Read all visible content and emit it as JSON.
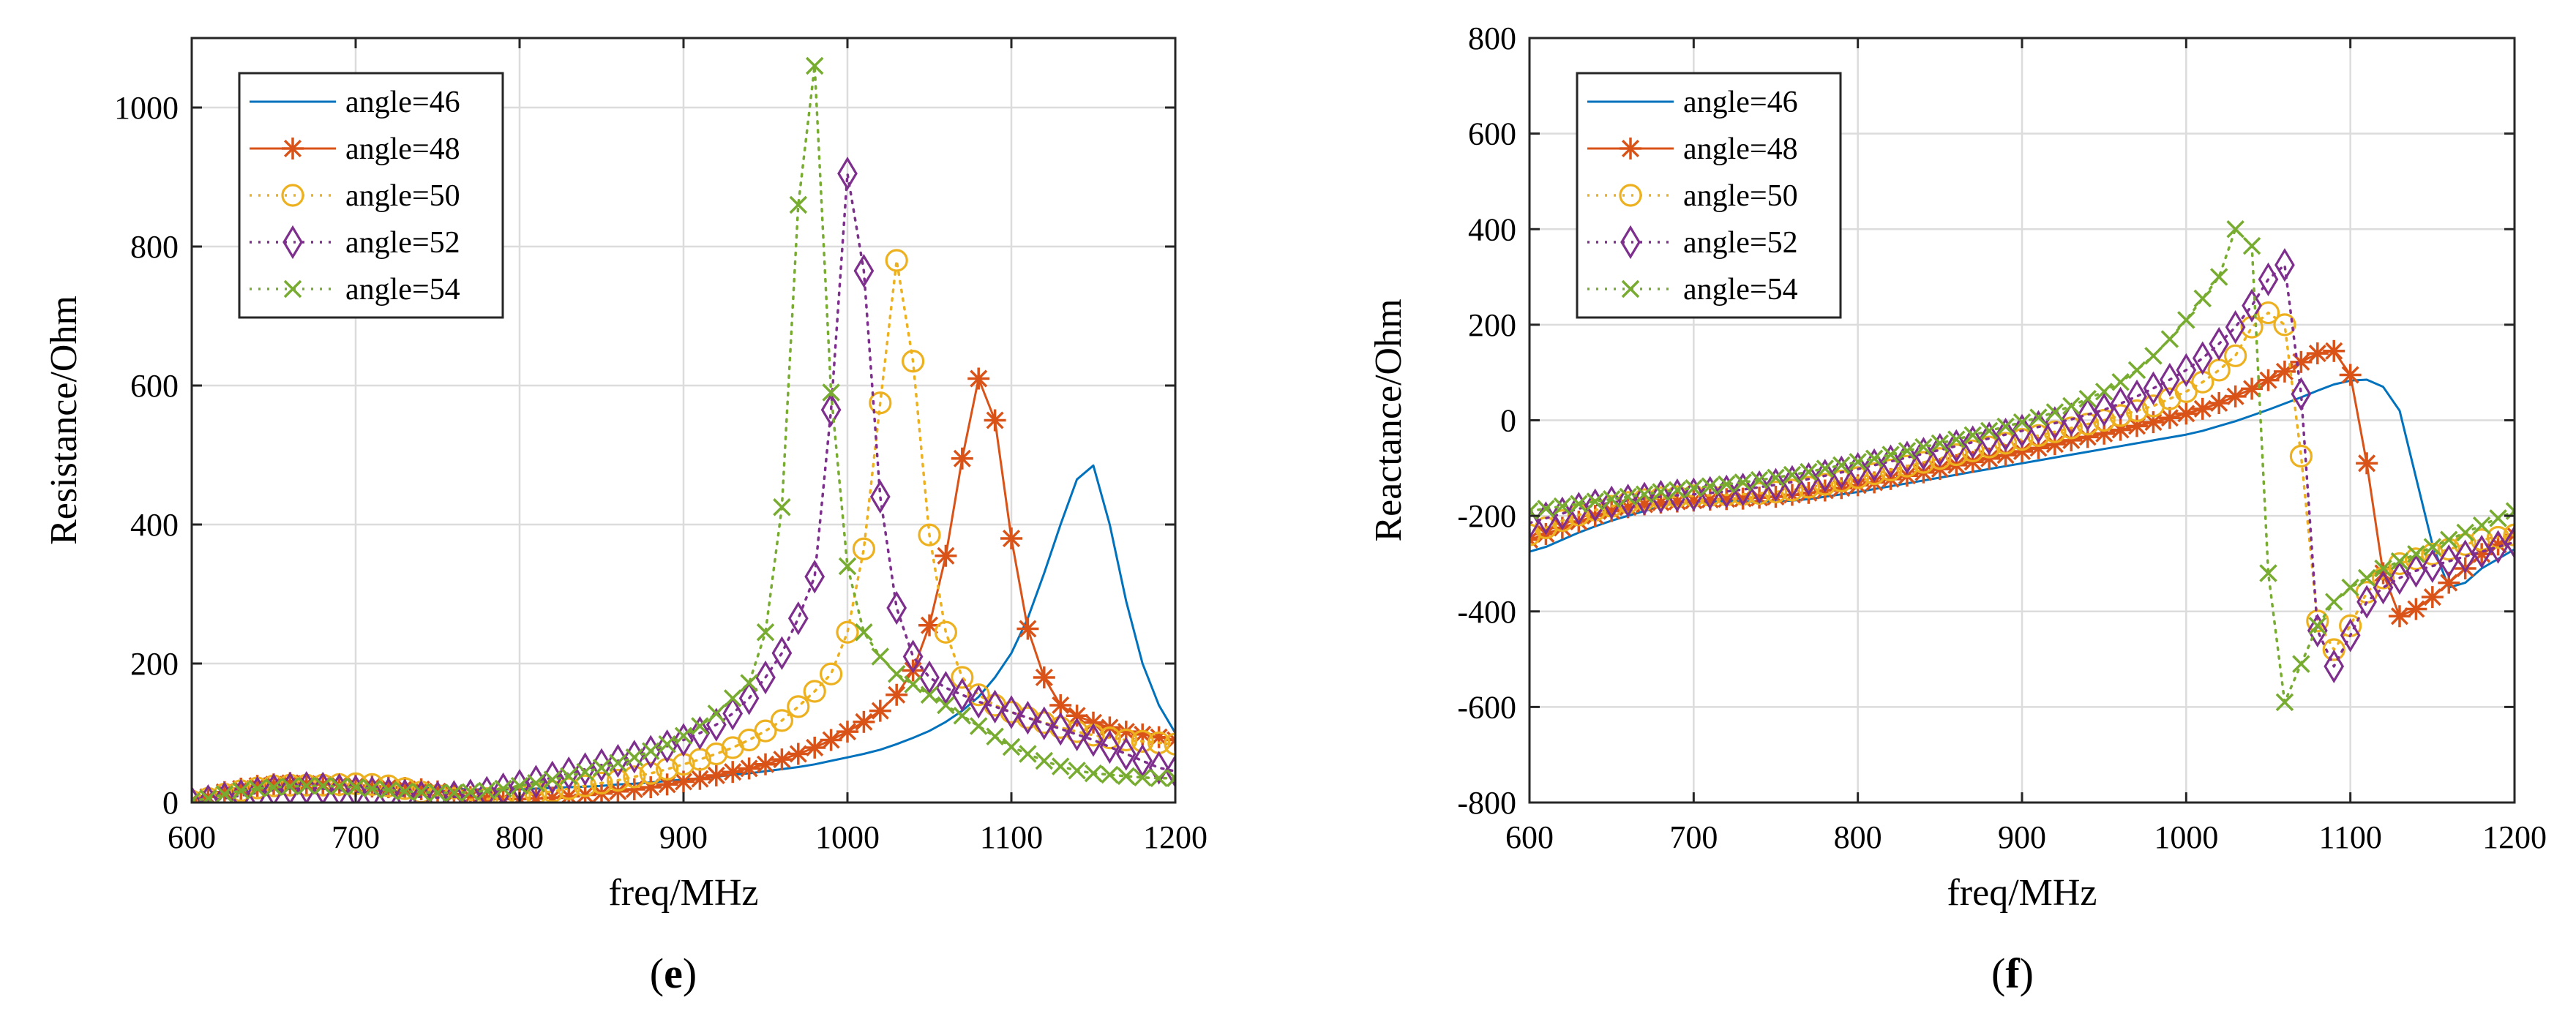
{
  "figure": {
    "caption_e": {
      "open": "(",
      "letter": "e",
      "close": ")"
    },
    "caption_f": {
      "open": "(",
      "letter": "f",
      "close": ")"
    }
  },
  "chart_data": [
    {
      "type": "line",
      "panel": "e",
      "title": "",
      "xlabel": "freq/MHz",
      "ylabel": "Resistance/Ohm",
      "xlim": [
        600,
        1200
      ],
      "ylim": [
        0,
        1100
      ],
      "xticks": [
        600,
        700,
        800,
        900,
        1000,
        1100,
        1200
      ],
      "yticks": [
        0,
        200,
        400,
        600,
        800,
        1000
      ],
      "grid": true,
      "legend_position": "top-left",
      "x": [
        600,
        610,
        620,
        630,
        640,
        650,
        660,
        670,
        680,
        690,
        700,
        710,
        720,
        730,
        740,
        750,
        760,
        770,
        780,
        790,
        800,
        810,
        820,
        830,
        840,
        850,
        860,
        870,
        880,
        890,
        900,
        910,
        920,
        930,
        940,
        950,
        960,
        970,
        980,
        990,
        1000,
        1010,
        1020,
        1030,
        1040,
        1050,
        1060,
        1070,
        1080,
        1090,
        1100,
        1110,
        1120,
        1130,
        1140,
        1150,
        1160,
        1170,
        1180,
        1190,
        1200
      ],
      "series": [
        {
          "name": "angle=46",
          "color": "#0072BD",
          "style": "solid",
          "marker": "none",
          "values": [
            5,
            10,
            15,
            19,
            22,
            24,
            25,
            26,
            26,
            26,
            25,
            24,
            23,
            22,
            21,
            20,
            20,
            19,
            19,
            19,
            19,
            20,
            21,
            22,
            23,
            24,
            26,
            27,
            29,
            31,
            33,
            35,
            37,
            40,
            42,
            45,
            48,
            51,
            55,
            60,
            65,
            70,
            76,
            84,
            93,
            103,
            116,
            132,
            152,
            180,
            215,
            265,
            330,
            400,
            465,
            485,
            400,
            290,
            200,
            140,
            100
          ]
        },
        {
          "name": "angle=48",
          "color": "#D95319",
          "style": "solid",
          "marker": "asterisk",
          "values": [
            3,
            8,
            15,
            20,
            24,
            26,
            28,
            27,
            26,
            25,
            24,
            23,
            22,
            21,
            19,
            16,
            12,
            8,
            6,
            5,
            5,
            6,
            7,
            9,
            11,
            13,
            16,
            19,
            22,
            26,
            30,
            34,
            39,
            44,
            49,
            55,
            62,
            70,
            79,
            90,
            102,
            116,
            132,
            155,
            190,
            255,
            355,
            495,
            610,
            550,
            380,
            250,
            180,
            140,
            125,
            115,
            108,
            102,
            98,
            94,
            90
          ]
        },
        {
          "name": "angle=50",
          "color": "#EDB120",
          "style": "dotted",
          "marker": "circle",
          "values": [
            2,
            6,
            12,
            17,
            21,
            24,
            25,
            25,
            25,
            26,
            27,
            26,
            24,
            20,
            15,
            10,
            6,
            4,
            5,
            7,
            10,
            13,
            16,
            20,
            24,
            28,
            32,
            37,
            42,
            48,
            55,
            62,
            70,
            79,
            90,
            103,
            118,
            138,
            160,
            185,
            245,
            365,
            575,
            780,
            635,
            385,
            245,
            180,
            155,
            140,
            130,
            122,
            115,
            108,
            102,
            97,
            93,
            90,
            88,
            86,
            84
          ]
        },
        {
          "name": "angle=52",
          "color": "#7E2F8E",
          "style": "dotted",
          "marker": "diamond",
          "values": [
            0,
            2,
            6,
            10,
            14,
            18,
            20,
            21,
            20,
            18,
            16,
            14,
            12,
            10,
            8,
            7,
            8,
            10,
            14,
            19,
            24,
            30,
            36,
            42,
            48,
            54,
            60,
            66,
            73,
            81,
            90,
            100,
            112,
            128,
            150,
            180,
            215,
            265,
            325,
            565,
            905,
            765,
            440,
            280,
            210,
            180,
            165,
            155,
            145,
            138,
            130,
            122,
            114,
            106,
            98,
            90,
            80,
            70,
            60,
            50,
            45
          ]
        },
        {
          "name": "angle=54",
          "color": "#77AC30",
          "style": "dotted",
          "marker": "x",
          "values": [
            2,
            6,
            12,
            17,
            20,
            22,
            23,
            24,
            24,
            23,
            22,
            20,
            18,
            16,
            15,
            14,
            14,
            15,
            17,
            20,
            24,
            28,
            33,
            38,
            44,
            50,
            57,
            65,
            74,
            84,
            96,
            110,
            128,
            150,
            172,
            245,
            425,
            860,
            1060,
            590,
            340,
            245,
            210,
            185,
            170,
            155,
            140,
            125,
            110,
            95,
            80,
            70,
            60,
            52,
            46,
            42,
            40,
            38,
            36,
            35,
            35
          ]
        }
      ]
    },
    {
      "type": "line",
      "panel": "f",
      "title": "",
      "xlabel": "freq/MHz",
      "ylabel": "Reactance/Ohm",
      "xlim": [
        600,
        1200
      ],
      "ylim": [
        -800,
        800
      ],
      "xticks": [
        600,
        700,
        800,
        900,
        1000,
        1100,
        1200
      ],
      "yticks": [
        -800,
        -600,
        -400,
        -200,
        0,
        200,
        400,
        600,
        800
      ],
      "grid": true,
      "legend_position": "top-left",
      "x": [
        600,
        610,
        620,
        630,
        640,
        650,
        660,
        670,
        680,
        690,
        700,
        710,
        720,
        730,
        740,
        750,
        760,
        770,
        780,
        790,
        800,
        810,
        820,
        830,
        840,
        850,
        860,
        870,
        880,
        890,
        900,
        910,
        920,
        930,
        940,
        950,
        960,
        970,
        980,
        990,
        1000,
        1010,
        1020,
        1030,
        1040,
        1050,
        1060,
        1070,
        1080,
        1090,
        1100,
        1110,
        1120,
        1130,
        1140,
        1150,
        1160,
        1170,
        1180,
        1190,
        1200
      ],
      "series": [
        {
          "name": "angle=46",
          "color": "#0072BD",
          "style": "solid",
          "marker": "none",
          "values": [
            -275,
            -265,
            -250,
            -235,
            -222,
            -210,
            -200,
            -190,
            -180,
            -173,
            -170,
            -170,
            -170,
            -170,
            -170,
            -170,
            -168,
            -165,
            -160,
            -155,
            -150,
            -144,
            -138,
            -132,
            -126,
            -120,
            -114,
            -108,
            -102,
            -96,
            -90,
            -84,
            -78,
            -72,
            -66,
            -60,
            -54,
            -48,
            -42,
            -36,
            -30,
            -22,
            -12,
            -2,
            10,
            22,
            35,
            48,
            62,
            75,
            83,
            85,
            70,
            20,
            -120,
            -260,
            -350,
            -340,
            -310,
            -290,
            -270
          ]
        },
        {
          "name": "angle=48",
          "color": "#D95319",
          "style": "solid",
          "marker": "asterisk",
          "values": [
            -250,
            -238,
            -225,
            -212,
            -200,
            -190,
            -182,
            -176,
            -172,
            -170,
            -168,
            -166,
            -165,
            -164,
            -162,
            -160,
            -156,
            -152,
            -147,
            -142,
            -136,
            -130,
            -123,
            -116,
            -109,
            -102,
            -94,
            -87,
            -80,
            -73,
            -65,
            -58,
            -50,
            -42,
            -35,
            -28,
            -20,
            -12,
            -4,
            5,
            14,
            24,
            36,
            50,
            66,
            84,
            102,
            122,
            140,
            145,
            95,
            -90,
            -320,
            -410,
            -395,
            -370,
            -340,
            -310,
            -280,
            -260,
            -240
          ]
        },
        {
          "name": "angle=50",
          "color": "#EDB120",
          "style": "dotted",
          "marker": "circle",
          "values": [
            -240,
            -225,
            -210,
            -198,
            -188,
            -180,
            -172,
            -166,
            -162,
            -160,
            -158,
            -157,
            -156,
            -155,
            -153,
            -150,
            -146,
            -140,
            -134,
            -127,
            -120,
            -112,
            -104,
            -96,
            -88,
            -80,
            -72,
            -64,
            -56,
            -48,
            -40,
            -32,
            -24,
            -16,
            -8,
            0,
            10,
            20,
            30,
            45,
            60,
            80,
            105,
            135,
            195,
            225,
            200,
            -75,
            -420,
            -480,
            -430,
            -360,
            -330,
            -300,
            -290,
            -280,
            -270,
            -260,
            -250,
            -245,
            -240
          ]
        },
        {
          "name": "angle=52",
          "color": "#7E2F8E",
          "style": "dotted",
          "marker": "diamond",
          "values": [
            -215,
            -205,
            -195,
            -185,
            -178,
            -172,
            -168,
            -164,
            -160,
            -157,
            -155,
            -152,
            -149,
            -145,
            -140,
            -135,
            -129,
            -123,
            -116,
            -109,
            -102,
            -94,
            -86,
            -78,
            -70,
            -62,
            -54,
            -46,
            -38,
            -30,
            -22,
            -14,
            -6,
            2,
            12,
            22,
            35,
            50,
            67,
            85,
            105,
            130,
            160,
            195,
            240,
            295,
            325,
            55,
            -440,
            -515,
            -450,
            -380,
            -350,
            -330,
            -315,
            -305,
            -295,
            -285,
            -275,
            -265,
            -255
          ]
        },
        {
          "name": "angle=54",
          "color": "#77AC30",
          "style": "dotted",
          "marker": "x",
          "values": [
            -190,
            -185,
            -180,
            -175,
            -170,
            -165,
            -160,
            -155,
            -150,
            -146,
            -142,
            -138,
            -134,
            -130,
            -125,
            -120,
            -114,
            -108,
            -101,
            -94,
            -87,
            -80,
            -72,
            -64,
            -56,
            -48,
            -40,
            -31,
            -22,
            -13,
            -4,
            6,
            17,
            30,
            45,
            60,
            80,
            105,
            135,
            170,
            210,
            255,
            300,
            400,
            365,
            -320,
            -590,
            -510,
            -430,
            -380,
            -350,
            -330,
            -310,
            -295,
            -280,
            -265,
            -250,
            -235,
            -220,
            -205,
            -190
          ]
        }
      ]
    }
  ]
}
